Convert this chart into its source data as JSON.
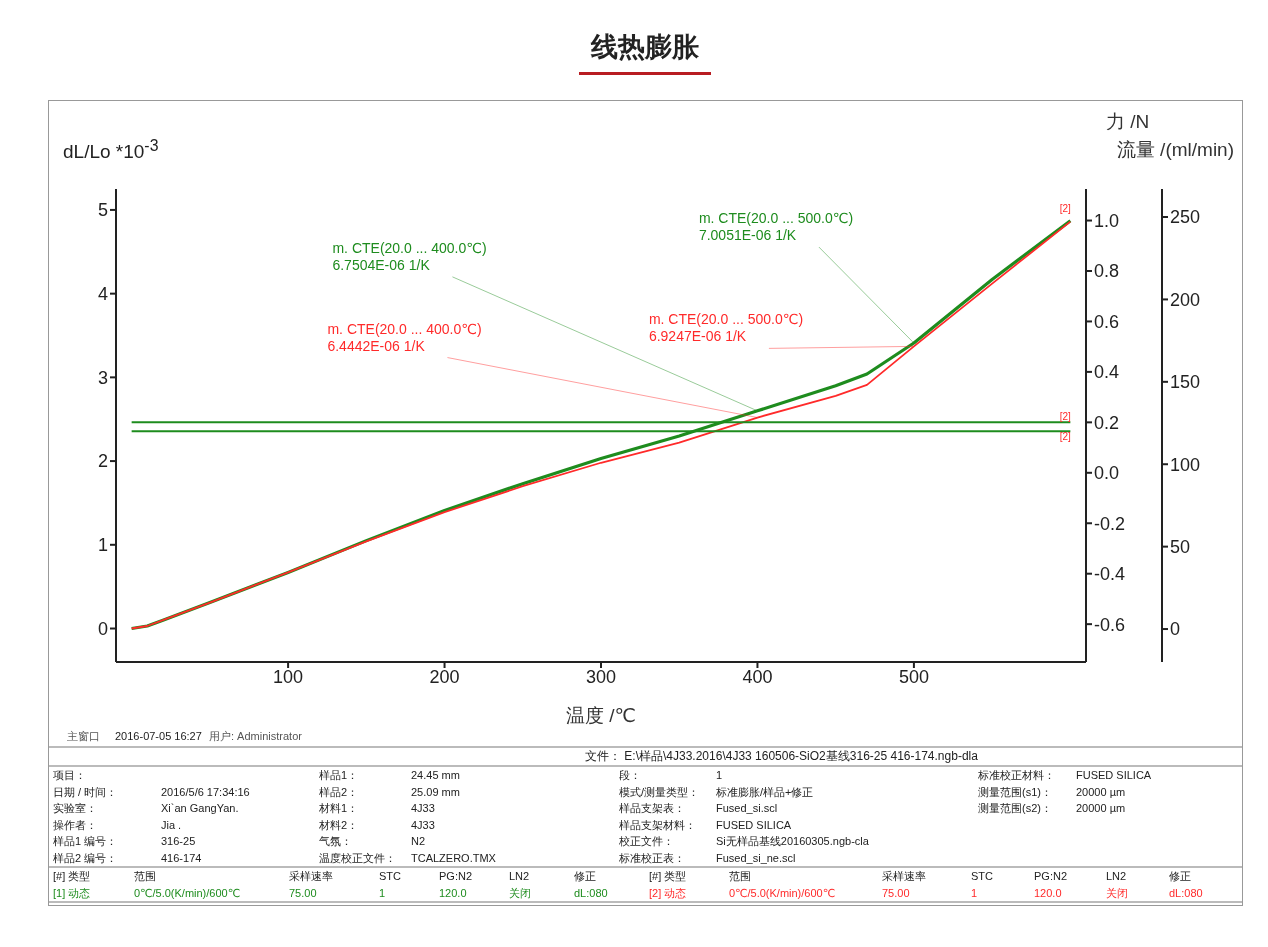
{
  "chart_data": {
    "type": "line",
    "title": "线热膨胀",
    "xlabel": "温度 /℃",
    "ylabel": "dL/Lo *10$^{-3}$",
    "y2label": "力 /N",
    "y3label": "流量 /(ml/min)",
    "xlim": [
      -10,
      610
    ],
    "xticks": [
      100,
      200,
      300,
      400,
      500
    ],
    "ylim": [
      -0.4,
      5.25
    ],
    "yticks": [
      0,
      1,
      2,
      3,
      4,
      5
    ],
    "y2lim": [
      -0.75,
      1.125
    ],
    "y2ticks": [
      -0.6,
      -0.4,
      -0.2,
      {
        "value": 0,
        "label": "0.0"
      },
      0.2,
      0.4,
      0.6,
      0.8,
      {
        "value": 1,
        "label": "1.0"
      }
    ],
    "y3lim": [
      -20,
      267
    ],
    "y3ticks": [
      0,
      50,
      100,
      150,
      200,
      250
    ],
    "series": [
      {
        "color": "#1e8c1e",
        "x": [
          0,
          10,
          20,
          50,
          100,
          150,
          200,
          250,
          300,
          350,
          400,
          450,
          470,
          500,
          550,
          600
        ],
        "values": [
          0,
          0.03,
          0.1,
          0.31,
          0.67,
          1.05,
          1.41,
          1.73,
          2.03,
          2.3,
          2.6,
          2.9,
          3.04,
          3.41,
          4.17,
          4.87
        ]
      },
      {
        "color": "#ff2a2a",
        "x": [
          0,
          10,
          20,
          50,
          100,
          150,
          200,
          250,
          300,
          350,
          400,
          450,
          470,
          500,
          550,
          600
        ],
        "values": [
          0,
          0.03,
          0.1,
          0.31,
          0.67,
          1.04,
          1.39,
          1.7,
          1.98,
          2.22,
          2.52,
          2.78,
          2.91,
          3.37,
          4.12,
          4.86
        ]
      },
      {
        "type": "line",
        "axis": "y2",
        "color": "#1e8c1e",
        "x": [
          0,
          600
        ],
        "values": [
          0.2,
          0.2
        ]
      },
      {
        "type": "line",
        "axis": "y3",
        "color": "#1e8c1e",
        "x": [
          0,
          600
        ],
        "values": [
          120,
          120
        ]
      }
    ],
    "annotations": [
      {
        "text": "m. CTE(20.0 ... 400.0℃)\n6.7504E-06 1/K",
        "x": 400,
        "y": 2.6
      },
      {
        "text": "m. CTE(20.0 ... 400.0℃)\n6.4442E-06 1/K",
        "x": 400,
        "y": 2.52
      },
      {
        "text": "m. CTE(20.0 ... 500.0℃)\n7.0051E-06 1/K",
        "x": 500,
        "y": 3.41
      },
      {
        "text": "m. CTE(20.0 ... 500.0℃)\n6.9247E-06 1/K",
        "x": 500,
        "y": 3.37
      },
      {
        "text": "[2]",
        "x": 600,
        "y": 4.86
      },
      {
        "text": "[2]",
        "x": 600,
        "y": 2.45
      },
      {
        "text": "[2]",
        "x": 600,
        "y": 2.35
      },
      "主窗口",
      "2016-07-05 16:27",
      "用户: Administrator",
      "文件： E:\\样品\\4J33.2016\\4J33 160506-SiO2基线316-25 416-174.ngb-dla",
      "项目：",
      "样品1：",
      "24.45 mm",
      "段：",
      "1",
      "标准校正材料：",
      "FUSED SILICA",
      "日期 / 时间：",
      "2016/5/6 17:34:16",
      "样品2：",
      "25.09 mm",
      "模式/测量类型：",
      "标准膨胀/样品+修正",
      "测量范围(s1)：",
      "20000 µm",
      "实验室：",
      "Xi`an GangYan.",
      "材料1：",
      "4J33",
      "样品支架表：",
      "Fused_si.scl",
      "测量范围(s2)：",
      "20000 µm",
      "操作者：",
      "Jia .",
      "材料2：",
      "4J33",
      "样品支架材料：",
      "FUSED SILICA",
      "样品1 编号：",
      "316-25",
      "气氛：",
      "N2",
      "校正文件：",
      "Si无样品基线20160305.ngb-cla",
      "样品2 编号：",
      "416-174",
      "温度校正文件：",
      "TCALZERO.TMX",
      "标准校正表：",
      "Fused_si_ne.scl",
      "[#] 类型",
      "范围",
      "采样速率",
      "STC",
      "PG:N2",
      "LN2",
      "修正",
      "[#] 类型",
      "范围",
      "采样速率",
      "STC",
      "PG:N2",
      "LN2",
      "修正",
      "[1] 动态",
      "0℃/5.0(K/min)/600℃",
      "75.00",
      "1",
      "120.0",
      "关闭",
      "dL:080",
      "[2] 动态",
      "0℃/5.0(K/min)/600℃",
      "75.00",
      "1",
      "120.0",
      "关闭",
      "dL:080"
    ]
  }
}
